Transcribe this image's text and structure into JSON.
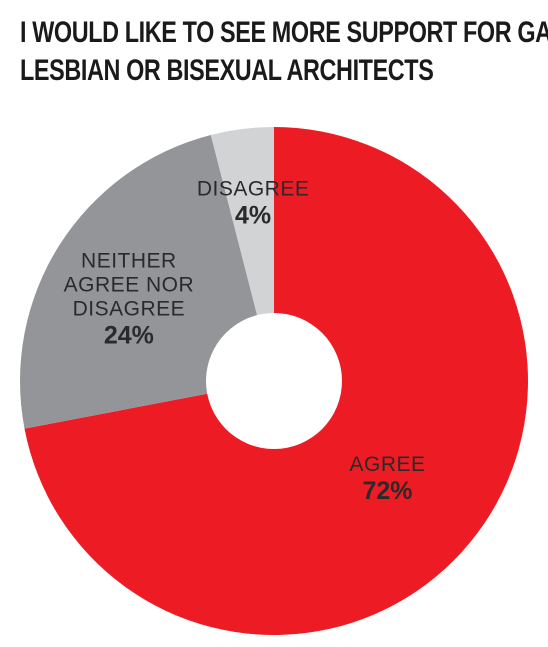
{
  "chart_data": {
    "type": "pie",
    "title_lines": [
      "I WOULD LIKE TO SEE MORE SUPPORT FOR GAY,",
      "LESBIAN OR BISEXUAL ARCHITECTS"
    ],
    "slices": [
      {
        "label_lines": [
          "AGREE"
        ],
        "value": 72,
        "value_text": "72%",
        "color": "#ed1c24"
      },
      {
        "label_lines": [
          "NEITHER",
          "AGREE NOR",
          "DISAGREE"
        ],
        "value": 24,
        "value_text": "24%",
        "color": "#939598"
      },
      {
        "label_lines": [
          "DISAGREE"
        ],
        "value": 4,
        "value_text": "4%",
        "color": "#d1d3d4"
      }
    ],
    "donut": true,
    "legend": "none"
  }
}
